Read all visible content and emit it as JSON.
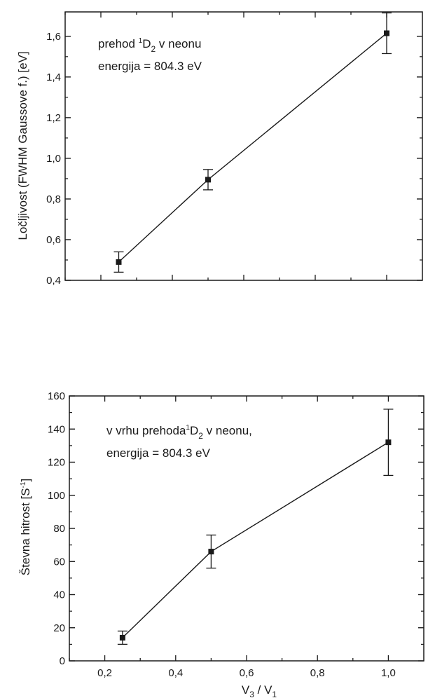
{
  "chart_data": [
    {
      "type": "line",
      "ylabel": "Ločljivost (FWHM Gaussove f.)  [eV]",
      "xlabel": "",
      "xlim": [
        0.1,
        1.1
      ],
      "ylim": [
        0.4,
        1.72
      ],
      "yticks": [
        0.4,
        0.6,
        0.8,
        1.0,
        1.2,
        1.4,
        1.6
      ],
      "ytick_labels": [
        "0,4",
        "0,6",
        "0,8",
        "1,0",
        "1,2",
        "1,4",
        "1,6"
      ],
      "x": [
        0.25,
        0.5,
        1.0
      ],
      "y": [
        0.49,
        0.895,
        1.615
      ],
      "yerr": [
        0.05,
        0.05,
        0.1
      ],
      "annotation": {
        "line1_pre": "prehod ",
        "line1_sup": "1",
        "line1_base": "D",
        "line1_sub": "2",
        "line1_post": "  v  neonu",
        "line2": "energija = 804.3 eV"
      },
      "grid": false
    },
    {
      "type": "line",
      "ylabel_pre": "Števna hitrost  [S",
      "ylabel_sup": "-1",
      "ylabel_post": "]",
      "xlabel_a": "V",
      "xlabel_a_sub": "3",
      "xlabel_mid": "  /  V",
      "xlabel_b_sub": "1",
      "xlim": [
        0.1,
        1.1
      ],
      "ylim": [
        0,
        160
      ],
      "xticks": [
        0.2,
        0.4,
        0.6,
        0.8,
        1.0
      ],
      "xtick_labels": [
        "0,2",
        "0,4",
        "0,6",
        "0,8",
        "1,0"
      ],
      "yticks": [
        0,
        20,
        40,
        60,
        80,
        100,
        120,
        140,
        160
      ],
      "ytick_labels": [
        "0",
        "20",
        "40",
        "60",
        "80",
        "100",
        "120",
        "140",
        "160"
      ],
      "x": [
        0.25,
        0.5,
        1.0
      ],
      "y": [
        14,
        66,
        132
      ],
      "yerr": [
        4,
        10,
        20
      ],
      "annotation": {
        "line1_pre": "v vrhu prehoda",
        "line1_sup": "1",
        "line1_base": "D",
        "line1_sub": "2",
        "line1_post": " v neonu,",
        "line2": "energija = 804.3 eV"
      },
      "grid": false
    }
  ]
}
